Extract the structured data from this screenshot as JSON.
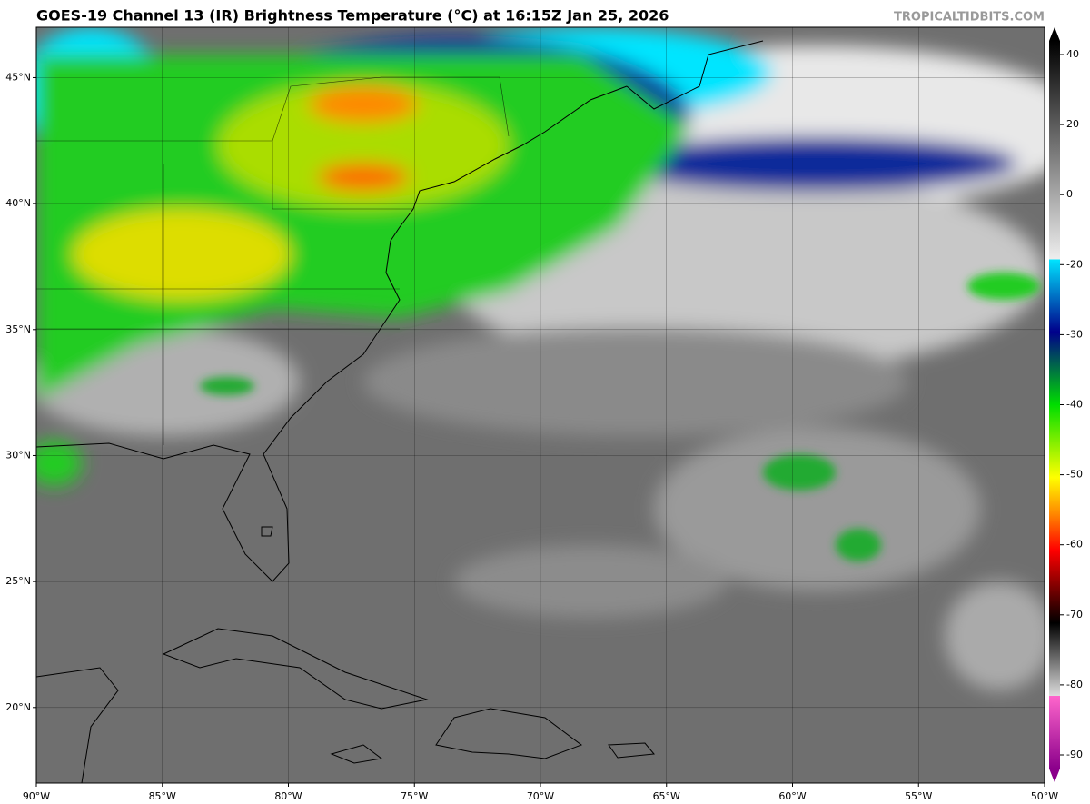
{
  "header": {
    "title": "GOES-19 Channel 13 (IR) Brightness Temperature (°C) at 16:15Z Jan 25, 2026",
    "credit": "TROPICALTIDBITS.COM"
  },
  "map": {
    "lon_range": [
      -90,
      -50
    ],
    "lat_range": [
      17,
      47
    ],
    "lon_ticks": [
      {
        "value": -90,
        "label": "90°W"
      },
      {
        "value": -85,
        "label": "85°W"
      },
      {
        "value": -80,
        "label": "80°W"
      },
      {
        "value": -75,
        "label": "75°W"
      },
      {
        "value": -70,
        "label": "70°W"
      },
      {
        "value": -65,
        "label": "65°W"
      },
      {
        "value": -60,
        "label": "60°W"
      },
      {
        "value": -55,
        "label": "55°W"
      },
      {
        "value": -50,
        "label": "50°W"
      }
    ],
    "lat_ticks": [
      {
        "value": 45,
        "label": "45°N"
      },
      {
        "value": 40,
        "label": "40°N"
      },
      {
        "value": 35,
        "label": "35°N"
      },
      {
        "value": 30,
        "label": "30°N"
      },
      {
        "value": 25,
        "label": "25°N"
      },
      {
        "value": 20,
        "label": "20°N"
      }
    ]
  },
  "colorbar": {
    "ticks": [
      40,
      20,
      0,
      -20,
      -30,
      -40,
      -50,
      -60,
      -70,
      -80,
      -90
    ]
  }
}
